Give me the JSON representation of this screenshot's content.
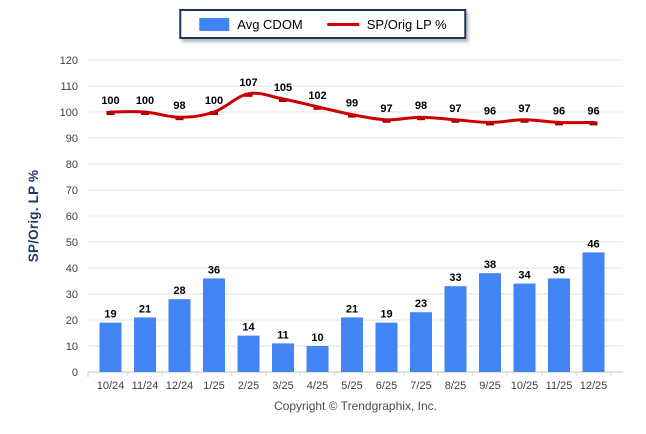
{
  "legend": {
    "bar_label": "Avg CDOM",
    "line_label": "SP/Orig LP %"
  },
  "y_axis": {
    "title": "SP/Orig. LP %",
    "min": 0,
    "max": 120,
    "step": 10
  },
  "footer": {
    "copyright": "Copyright © Trendgraphix, Inc."
  },
  "colors": {
    "bar": "#4285F4",
    "line": "#CC0000",
    "line_marker": "#A50000",
    "legend_border": "#17375E",
    "axis_title": "#1F3864",
    "tick_label": "#404040",
    "data_label": "#000000",
    "gridline": "#ECECEC",
    "axis_line": "#D6D6D6",
    "copyright": "#4D4D4D"
  },
  "chart_data": {
    "type": "bar",
    "title": "",
    "xlabel": "",
    "ylabel": "SP/Orig. LP %",
    "ylim": [
      0,
      120
    ],
    "ystep": 10,
    "grid": true,
    "legend_position": "top-center",
    "categories": [
      "10/24",
      "11/24",
      "12/24",
      "1/25",
      "2/25",
      "3/25",
      "4/25",
      "5/25",
      "6/25",
      "7/25",
      "8/25",
      "9/25",
      "10/25",
      "11/25",
      "12/25"
    ],
    "series": [
      {
        "name": "Avg CDOM",
        "type": "bar",
        "values": [
          19,
          21,
          28,
          36,
          14,
          11,
          10,
          21,
          19,
          23,
          33,
          38,
          34,
          36,
          46
        ]
      },
      {
        "name": "SP/Orig LP %",
        "type": "line",
        "values": [
          100,
          100,
          98,
          100,
          107,
          105,
          102,
          99,
          97,
          98,
          97,
          96,
          97,
          96,
          96
        ]
      }
    ]
  }
}
